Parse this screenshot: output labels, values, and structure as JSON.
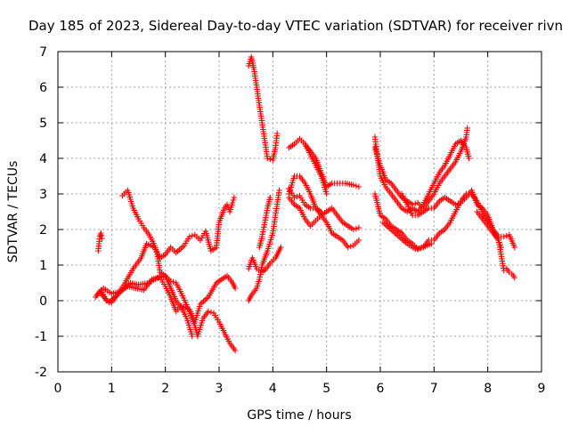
{
  "chart_data": {
    "type": "scatter",
    "title": "Day 185 of 2023, Sidereal Day-to-day VTEC variation (SDTVAR) for receiver rivn",
    "xlabel": "GPS time / hours",
    "ylabel": "SDTVAR / TECUs",
    "xlim": [
      0,
      9
    ],
    "ylim": [
      -2,
      7
    ],
    "xticks": [
      "0",
      "1",
      "2",
      "3",
      "4",
      "5",
      "6",
      "7",
      "8",
      "9"
    ],
    "yticks": [
      "-2",
      "-1",
      "0",
      "1",
      "2",
      "3",
      "4",
      "5",
      "6",
      "7"
    ],
    "grid": true,
    "marker": "plus",
    "color": "#ff0000",
    "series": [
      {
        "name": "s1",
        "points": [
          [
            0.75,
            1.4
          ],
          [
            0.78,
            1.8
          ],
          [
            0.8,
            1.9
          ],
          [
            0.82,
            1.75
          ]
        ]
      },
      {
        "name": "s2",
        "points": [
          [
            0.72,
            0.15
          ],
          [
            0.8,
            0.3
          ],
          [
            0.9,
            0.0
          ],
          [
            1.0,
            -0.05
          ],
          [
            1.1,
            0.15
          ],
          [
            1.2,
            0.3
          ],
          [
            1.35,
            0.5
          ],
          [
            1.5,
            0.45
          ],
          [
            1.7,
            0.5
          ],
          [
            1.85,
            0.65
          ],
          [
            2.0,
            0.7
          ],
          [
            2.1,
            0.55
          ],
          [
            2.2,
            0.5
          ],
          [
            2.3,
            0.2
          ],
          [
            2.45,
            -0.3
          ],
          [
            2.55,
            -0.7
          ],
          [
            2.6,
            -1.0
          ],
          [
            2.7,
            -0.5
          ],
          [
            2.8,
            -0.3
          ],
          [
            2.9,
            -0.35
          ],
          [
            3.0,
            -0.6
          ],
          [
            3.1,
            -0.9
          ],
          [
            3.2,
            -1.2
          ],
          [
            3.3,
            -1.4
          ]
        ]
      },
      {
        "name": "s3",
        "points": [
          [
            0.8,
            0.2
          ],
          [
            0.95,
            -0.05
          ],
          [
            1.1,
            0.15
          ],
          [
            1.25,
            0.5
          ],
          [
            1.4,
            0.9
          ],
          [
            1.55,
            1.2
          ],
          [
            1.65,
            1.6
          ],
          [
            1.8,
            1.5
          ],
          [
            1.9,
            1.2
          ],
          [
            2.0,
            1.3
          ],
          [
            2.1,
            1.5
          ],
          [
            2.2,
            1.35
          ],
          [
            2.35,
            1.55
          ],
          [
            2.45,
            1.8
          ],
          [
            2.55,
            1.85
          ],
          [
            2.65,
            1.7
          ],
          [
            2.75,
            1.95
          ],
          [
            2.85,
            1.4
          ],
          [
            2.95,
            1.5
          ],
          [
            3.0,
            2.2
          ],
          [
            3.1,
            2.6
          ],
          [
            3.15,
            2.7
          ],
          [
            3.2,
            2.5
          ],
          [
            3.25,
            2.75
          ],
          [
            3.28,
            2.9
          ]
        ]
      },
      {
        "name": "s4",
        "points": [
          [
            0.7,
            0.1
          ],
          [
            0.85,
            0.35
          ],
          [
            1.0,
            0.2
          ],
          [
            1.15,
            0.25
          ],
          [
            1.3,
            0.4
          ],
          [
            1.45,
            0.35
          ],
          [
            1.6,
            0.3
          ],
          [
            1.75,
            0.6
          ],
          [
            1.9,
            0.65
          ],
          [
            2.0,
            0.4
          ],
          [
            2.1,
            0.1
          ],
          [
            2.2,
            -0.3
          ],
          [
            2.3,
            -0.15
          ],
          [
            2.45,
            -0.25
          ],
          [
            2.55,
            -0.6
          ],
          [
            2.65,
            -0.1
          ],
          [
            2.8,
            0.1
          ],
          [
            2.95,
            0.5
          ],
          [
            3.05,
            0.6
          ],
          [
            3.15,
            0.7
          ],
          [
            3.25,
            0.5
          ],
          [
            3.3,
            0.35
          ]
        ]
      },
      {
        "name": "s5",
        "points": [
          [
            1.2,
            2.95
          ],
          [
            1.3,
            3.1
          ],
          [
            1.4,
            2.6
          ],
          [
            1.5,
            2.3
          ],
          [
            1.6,
            2.05
          ],
          [
            1.7,
            1.85
          ],
          [
            1.8,
            1.55
          ],
          [
            1.85,
            1.3
          ],
          [
            1.9,
            0.8
          ],
          [
            2.0,
            0.7
          ],
          [
            2.1,
            0.35
          ],
          [
            2.2,
            0.0
          ],
          [
            2.3,
            -0.2
          ],
          [
            2.4,
            -0.5
          ],
          [
            2.5,
            -1.0
          ]
        ]
      },
      {
        "name": "s6",
        "points": [
          [
            3.55,
            6.6
          ],
          [
            3.6,
            6.85
          ],
          [
            3.65,
            6.5
          ],
          [
            3.7,
            6.0
          ],
          [
            3.75,
            5.5
          ],
          [
            3.8,
            5.0
          ],
          [
            3.85,
            4.5
          ],
          [
            3.9,
            4.0
          ],
          [
            4.0,
            3.95
          ],
          [
            4.05,
            4.3
          ],
          [
            4.08,
            4.7
          ]
        ]
      },
      {
        "name": "s7",
        "points": [
          [
            3.55,
            0.0
          ],
          [
            3.6,
            0.15
          ],
          [
            3.7,
            0.35
          ],
          [
            3.75,
            0.6
          ],
          [
            3.8,
            1.0
          ],
          [
            3.9,
            1.4
          ],
          [
            4.0,
            1.9
          ],
          [
            4.05,
            2.4
          ],
          [
            4.1,
            2.9
          ],
          [
            4.12,
            3.1
          ]
        ]
      },
      {
        "name": "s8",
        "points": [
          [
            3.55,
            0.9
          ],
          [
            3.62,
            1.2
          ],
          [
            3.7,
            0.9
          ],
          [
            3.78,
            0.8
          ],
          [
            3.85,
            0.85
          ],
          [
            3.95,
            1.05
          ],
          [
            4.05,
            1.2
          ],
          [
            4.1,
            1.35
          ],
          [
            4.15,
            1.5
          ]
        ]
      },
      {
        "name": "s9",
        "points": [
          [
            3.75,
            1.5
          ],
          [
            3.8,
            1.8
          ],
          [
            3.85,
            2.2
          ],
          [
            3.9,
            2.6
          ],
          [
            3.95,
            2.9
          ]
        ]
      },
      {
        "name": "s10",
        "points": [
          [
            4.3,
            4.3
          ],
          [
            4.4,
            4.4
          ],
          [
            4.5,
            4.55
          ],
          [
            4.6,
            4.4
          ],
          [
            4.7,
            4.2
          ],
          [
            4.8,
            4.0
          ],
          [
            4.9,
            3.6
          ],
          [
            5.0,
            3.2
          ],
          [
            5.1,
            3.3
          ],
          [
            5.2,
            3.3
          ],
          [
            5.35,
            3.3
          ],
          [
            5.5,
            3.25
          ],
          [
            5.6,
            3.2
          ]
        ]
      },
      {
        "name": "s11",
        "points": [
          [
            4.3,
            3.0
          ],
          [
            4.4,
            3.5
          ],
          [
            4.5,
            3.5
          ],
          [
            4.6,
            3.3
          ],
          [
            4.7,
            3.0
          ],
          [
            4.8,
            2.6
          ],
          [
            4.9,
            2.4
          ],
          [
            5.0,
            2.5
          ],
          [
            5.1,
            2.6
          ],
          [
            5.2,
            2.4
          ],
          [
            5.3,
            2.2
          ],
          [
            5.4,
            2.1
          ],
          [
            5.5,
            2.0
          ],
          [
            5.6,
            2.05
          ]
        ]
      },
      {
        "name": "s12",
        "points": [
          [
            4.3,
            2.9
          ],
          [
            4.4,
            2.7
          ],
          [
            4.5,
            2.6
          ],
          [
            4.6,
            2.3
          ],
          [
            4.7,
            2.1
          ],
          [
            4.8,
            2.25
          ],
          [
            4.9,
            2.4
          ],
          [
            5.0,
            2.2
          ],
          [
            5.1,
            1.9
          ],
          [
            5.2,
            1.8
          ],
          [
            5.3,
            1.7
          ],
          [
            5.4,
            1.5
          ],
          [
            5.5,
            1.55
          ],
          [
            5.6,
            1.7
          ]
        ]
      },
      {
        "name": "s13",
        "points": [
          [
            4.3,
            3.15
          ],
          [
            4.4,
            2.9
          ],
          [
            4.5,
            2.95
          ],
          [
            4.6,
            2.7
          ],
          [
            4.7,
            2.6
          ],
          [
            4.8,
            2.6
          ],
          [
            4.9,
            2.5
          ]
        ]
      },
      {
        "name": "s14",
        "points": [
          [
            4.6,
            4.4
          ],
          [
            4.7,
            4.1
          ],
          [
            4.8,
            3.8
          ],
          [
            4.9,
            3.5
          ],
          [
            5.0,
            3.0
          ]
        ]
      },
      {
        "name": "s15",
        "points": [
          [
            5.9,
            4.6
          ],
          [
            5.95,
            4.0
          ],
          [
            6.0,
            3.5
          ],
          [
            6.1,
            3.2
          ],
          [
            6.2,
            3.0
          ],
          [
            6.3,
            2.8
          ],
          [
            6.4,
            2.6
          ],
          [
            6.5,
            2.5
          ],
          [
            6.6,
            2.6
          ],
          [
            6.7,
            2.5
          ],
          [
            6.8,
            2.7
          ],
          [
            6.9,
            3.0
          ],
          [
            7.0,
            3.3
          ],
          [
            7.1,
            3.6
          ],
          [
            7.2,
            3.8
          ],
          [
            7.3,
            4.1
          ],
          [
            7.4,
            4.4
          ],
          [
            7.5,
            4.5
          ],
          [
            7.6,
            4.3
          ],
          [
            7.65,
            4.0
          ]
        ]
      },
      {
        "name": "s16",
        "points": [
          [
            5.9,
            4.3
          ],
          [
            6.0,
            3.8
          ],
          [
            6.1,
            3.4
          ],
          [
            6.2,
            3.3
          ],
          [
            6.3,
            3.1
          ],
          [
            6.4,
            2.9
          ],
          [
            6.5,
            2.8
          ],
          [
            6.6,
            2.7
          ],
          [
            6.7,
            2.75
          ],
          [
            6.8,
            2.6
          ],
          [
            6.9,
            2.8
          ],
          [
            7.0,
            3.0
          ],
          [
            7.1,
            3.3
          ],
          [
            7.2,
            3.5
          ],
          [
            7.3,
            3.7
          ],
          [
            7.4,
            3.9
          ],
          [
            7.5,
            4.2
          ],
          [
            7.6,
            4.6
          ],
          [
            7.62,
            4.85
          ]
        ]
      },
      {
        "name": "s17",
        "points": [
          [
            5.9,
            3.0
          ],
          [
            6.0,
            2.4
          ],
          [
            6.1,
            2.3
          ],
          [
            6.2,
            2.1
          ],
          [
            6.3,
            2.0
          ],
          [
            6.4,
            1.9
          ],
          [
            6.5,
            1.7
          ],
          [
            6.6,
            1.6
          ],
          [
            6.7,
            1.45
          ],
          [
            6.8,
            1.5
          ],
          [
            6.9,
            1.7
          ],
          [
            7.0,
            1.7
          ],
          [
            7.1,
            1.9
          ],
          [
            7.2,
            2.0
          ],
          [
            7.3,
            2.2
          ],
          [
            7.4,
            2.5
          ],
          [
            7.5,
            2.8
          ],
          [
            7.6,
            3.0
          ],
          [
            7.7,
            3.0
          ],
          [
            7.8,
            2.8
          ],
          [
            7.9,
            2.5
          ],
          [
            8.0,
            2.2
          ],
          [
            8.1,
            2.0
          ],
          [
            8.2,
            1.8
          ],
          [
            8.3,
            1.8
          ],
          [
            8.4,
            1.85
          ],
          [
            8.5,
            1.5
          ]
        ]
      },
      {
        "name": "s18",
        "points": [
          [
            6.05,
            2.2
          ],
          [
            6.2,
            2.0
          ],
          [
            6.35,
            1.8
          ],
          [
            6.5,
            1.6
          ],
          [
            6.65,
            1.45
          ],
          [
            6.8,
            1.5
          ],
          [
            6.95,
            1.6
          ]
        ]
      },
      {
        "name": "s19",
        "points": [
          [
            6.4,
            3.0
          ],
          [
            6.5,
            2.7
          ],
          [
            6.6,
            2.4
          ],
          [
            6.7,
            2.4
          ],
          [
            6.8,
            2.5
          ],
          [
            6.9,
            2.6
          ],
          [
            7.0,
            2.6
          ],
          [
            7.1,
            2.8
          ],
          [
            7.2,
            2.9
          ],
          [
            7.3,
            2.8
          ],
          [
            7.4,
            2.7
          ],
          [
            7.5,
            2.75
          ],
          [
            7.6,
            2.9
          ],
          [
            7.7,
            3.1
          ],
          [
            7.8,
            2.7
          ],
          [
            7.9,
            2.6
          ],
          [
            8.0,
            2.4
          ],
          [
            8.1,
            2.0
          ],
          [
            8.2,
            1.7
          ],
          [
            8.25,
            1.5
          ]
        ]
      },
      {
        "name": "s20",
        "points": [
          [
            7.8,
            2.5
          ],
          [
            7.9,
            2.3
          ],
          [
            8.0,
            2.1
          ],
          [
            8.1,
            1.9
          ],
          [
            8.2,
            1.7
          ],
          [
            8.3,
            0.85
          ],
          [
            8.35,
            0.9
          ],
          [
            8.4,
            0.8
          ],
          [
            8.45,
            0.75
          ],
          [
            8.5,
            0.65
          ]
        ]
      }
    ]
  }
}
